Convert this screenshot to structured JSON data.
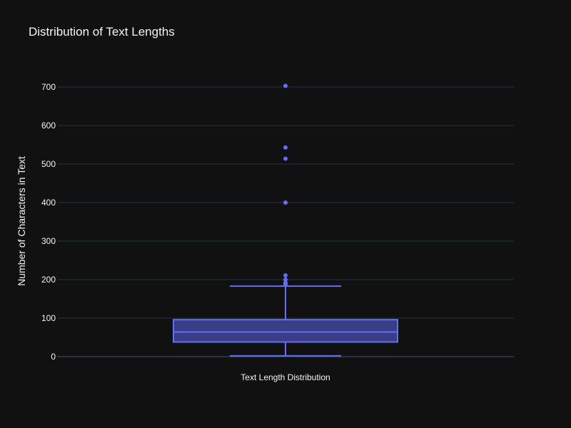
{
  "chart_data": {
    "type": "box",
    "title": "Distribution of Text Lengths",
    "xlabel": "",
    "ylabel": "Number of Characters in Text",
    "categories": [
      "Text Length Distribution"
    ],
    "ylim": [
      -10,
      750
    ],
    "yticks": [
      0,
      100,
      200,
      300,
      400,
      500,
      600,
      700
    ],
    "grid": true,
    "color": "#636efa",
    "box": {
      "min": 2,
      "q1": 38,
      "median": 64,
      "q3": 96,
      "whisker_high": 183,
      "outliers": [
        188,
        192,
        200,
        211,
        400,
        514,
        543,
        703
      ]
    }
  }
}
